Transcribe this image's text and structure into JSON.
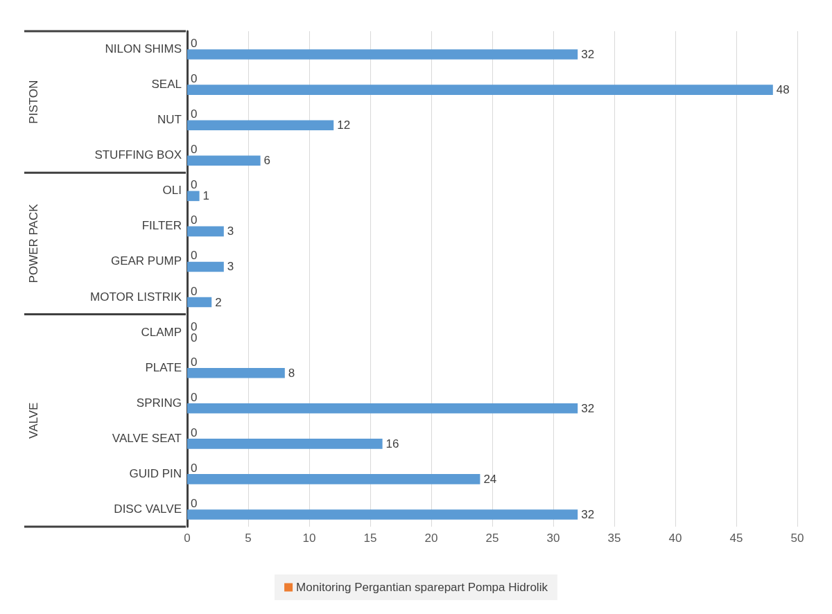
{
  "chart_data": {
    "type": "bar",
    "orientation": "horizontal",
    "categories": [
      "NILON SHIMS",
      "SEAL",
      "NUT",
      "STUFFING BOX",
      "OLI",
      "FILTER",
      "GEAR PUMP",
      "MOTOR LISTRIK",
      "CLAMP",
      "PLATE",
      "SPRING",
      "VALVE SEAT",
      "GUID PIN",
      "DISC VALVE"
    ],
    "series": [
      {
        "name": "Monitoring Pergantian sparepart Pompa Hidrolik",
        "color": "#ed7d31",
        "values": [
          0,
          0,
          0,
          0,
          0,
          0,
          0,
          0,
          0,
          0,
          0,
          0,
          0,
          0
        ]
      },
      {
        "color": "#5b9bd5",
        "values": [
          32,
          48,
          12,
          6,
          1,
          3,
          3,
          2,
          0,
          8,
          32,
          16,
          24,
          32
        ]
      }
    ],
    "xlim": [
      0,
      50
    ],
    "xticks": [
      0,
      5,
      10,
      15,
      20,
      25,
      30,
      35,
      40,
      45,
      50
    ],
    "grid": "x",
    "legend": "bottom",
    "data_labels": true,
    "annotations": [
      "PISTON",
      "POWER PACK",
      "VALVE"
    ]
  }
}
